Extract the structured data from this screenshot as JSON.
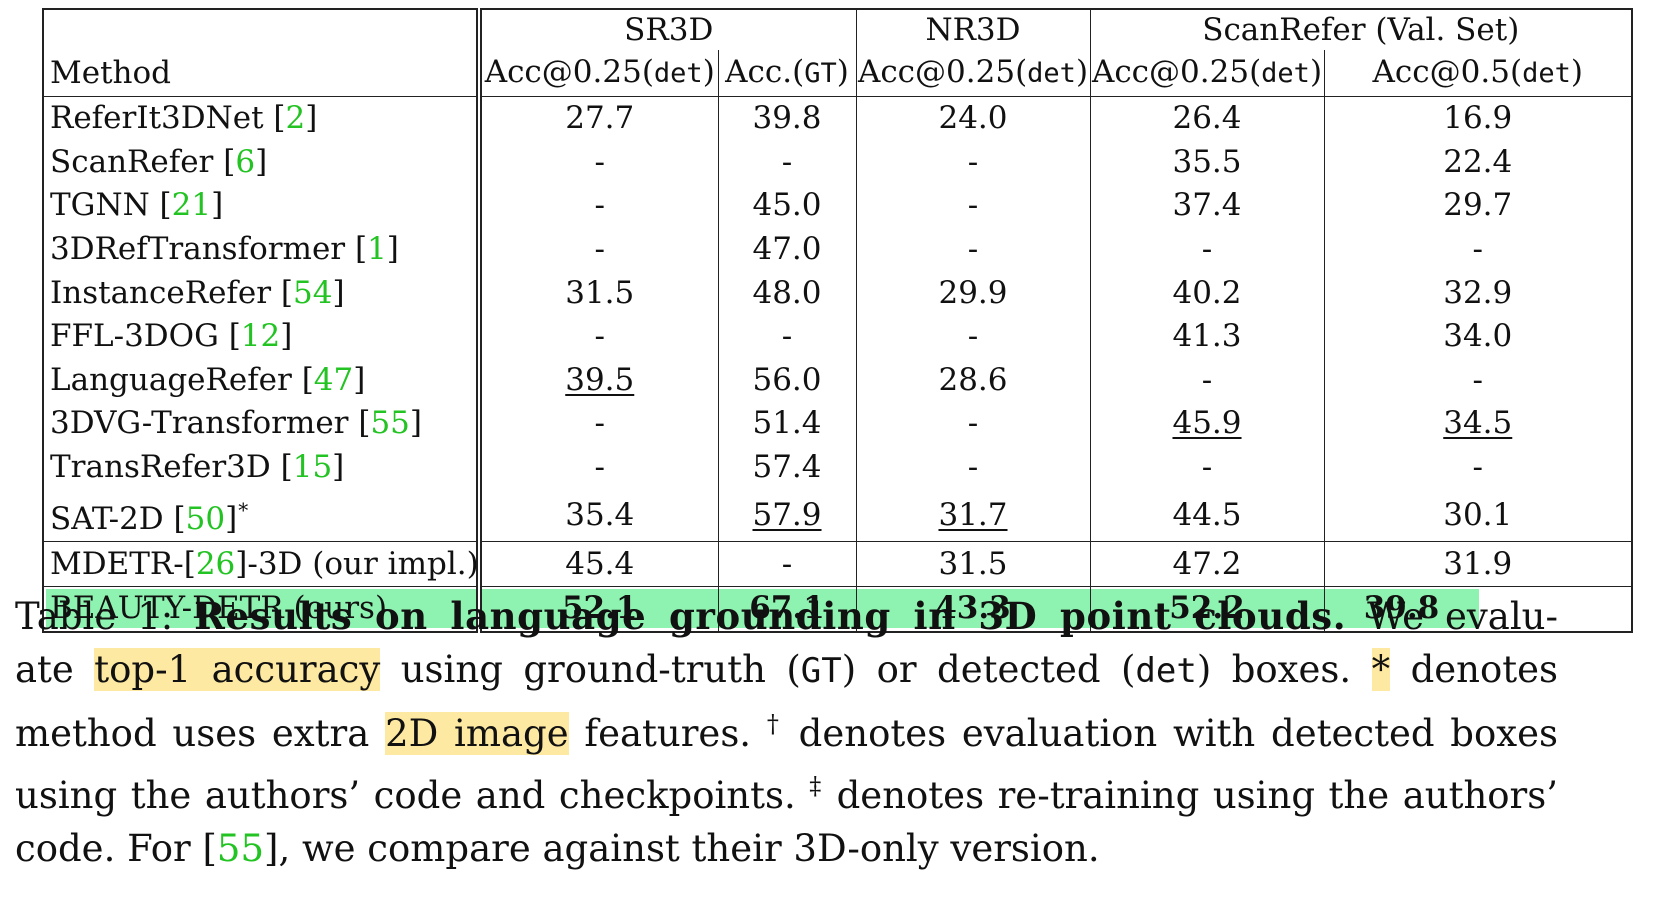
{
  "table": {
    "group_headers": {
      "sr3d": "SR3D",
      "nr3d": "NR3D",
      "scanrefer": "ScanRefer (Val. Set)"
    },
    "col_method": "Method",
    "cols": [
      {
        "pre": "Acc@0.25(",
        "mono": "det",
        "post": ")"
      },
      {
        "pre": "Acc.(",
        "mono": "GT",
        "post": ")"
      },
      {
        "pre": "Acc@0.25(",
        "mono": "det",
        "post": ")"
      },
      {
        "pre": "Acc@0.25(",
        "mono": "det",
        "post": ")"
      },
      {
        "pre": "Acc@0.5(",
        "mono": "det",
        "post": ")"
      }
    ],
    "rows": [
      {
        "name": "ReferIt3DNet",
        "cite": "2",
        "star": "",
        "c": [
          [
            "27.7",
            "†"
          ],
          [
            "39.8",
            ""
          ],
          [
            "24.0",
            "†"
          ],
          [
            "26.4",
            ""
          ],
          [
            "16.9",
            ""
          ]
        ]
      },
      {
        "name": "ScanRefer",
        "cite": "6",
        "star": "",
        "c": [
          [
            "-",
            ""
          ],
          [
            "-",
            ""
          ],
          [
            "-",
            ""
          ],
          [
            "35.5",
            ""
          ],
          [
            "22.4",
            ""
          ]
        ]
      },
      {
        "name": "TGNN",
        "cite": "21",
        "star": "",
        "c": [
          [
            "-",
            ""
          ],
          [
            "45.0",
            ""
          ],
          [
            "-",
            ""
          ],
          [
            "37.4",
            ""
          ],
          [
            "29.7",
            ""
          ]
        ]
      },
      {
        "name": "3DRefTransformer",
        "cite": "1",
        "star": "",
        "c": [
          [
            "-",
            ""
          ],
          [
            "47.0",
            ""
          ],
          [
            "-",
            ""
          ],
          [
            "-",
            ""
          ],
          [
            "-",
            ""
          ]
        ]
      },
      {
        "name": "InstanceRefer",
        "cite": "54",
        "star": "",
        "c": [
          [
            "31.5",
            "‡"
          ],
          [
            "48.0",
            ""
          ],
          [
            "29.9",
            "‡"
          ],
          [
            "40.2",
            ""
          ],
          [
            "32.9",
            ""
          ]
        ]
      },
      {
        "name": "FFL-3DOG",
        "cite": "12",
        "star": "",
        "c": [
          [
            "-",
            ""
          ],
          [
            "-",
            ""
          ],
          [
            "-",
            ""
          ],
          [
            "41.3",
            ""
          ],
          [
            "34.0",
            ""
          ]
        ]
      },
      {
        "name": "LanguageRefer",
        "cite": "47",
        "star": "",
        "c": [
          [
            "39.5",
            "†"
          ],
          [
            "56.0",
            ""
          ],
          [
            "28.6",
            "†"
          ],
          [
            "-",
            ""
          ],
          [
            "-",
            ""
          ]
        ]
      },
      {
        "name": "3DVG-Transformer",
        "cite": "55",
        "star": "",
        "c": [
          [
            "-",
            ""
          ],
          [
            "51.4",
            ""
          ],
          [
            "-",
            ""
          ],
          [
            "45.9",
            ""
          ],
          [
            "34.5",
            ""
          ]
        ]
      },
      {
        "name": "TransRefer3D",
        "cite": "15",
        "star": "",
        "c": [
          [
            "-",
            ""
          ],
          [
            "57.4",
            ""
          ],
          [
            "-",
            ""
          ],
          [
            "-",
            ""
          ],
          [
            "-",
            ""
          ]
        ]
      },
      {
        "name": "SAT-2D",
        "cite": "50",
        "star": "*",
        "c": [
          [
            "35.4",
            "†"
          ],
          [
            "57.9",
            ""
          ],
          [
            "31.7",
            "†"
          ],
          [
            "44.5",
            ""
          ],
          [
            "30.1",
            ""
          ]
        ]
      }
    ],
    "mdetr": {
      "pre": "MDETR-[",
      "cite": "26",
      "post": "]-3D (our impl.)",
      "c": [
        "45.4",
        "-",
        "31.5",
        "47.2",
        "31.9"
      ]
    },
    "ours": {
      "name": "BEAUTY-DETR (ours)",
      "c": [
        "52.1",
        "67.1",
        "43.3",
        "52.2",
        "39.8"
      ]
    }
  },
  "caption": {
    "label": "Table 1:",
    "title": "Results on language grounding in 3D point clouds.",
    "l1_tail": "We evalu-",
    "l2_a": "ate",
    "l2_hl": "top-1 accuracy",
    "l2_b": "using ground-truth (",
    "l2_mono1": "GT",
    "l2_c": ") or detected (",
    "l2_mono2": "det",
    "l2_d": ") boxes.",
    "l2_star": "*",
    "l2_e": "denotes",
    "l3_a": "method uses extra",
    "l3_hl": "2D image",
    "l3_b": "features.",
    "l3_dagger": "†",
    "l3_c": "denotes evaluation with detected boxes",
    "l4_a": "using the authors’ code and checkpoints.",
    "l4_ddagger": "‡",
    "l4_b": "denotes re-training using the authors’",
    "l5_a": "code. For [",
    "l5_cite": "55",
    "l5_b": "], we compare against their 3D-only version."
  },
  "colors": {
    "citation": "#22c322",
    "ours_highlight": "#8ef2b0",
    "caption_highlight": "#fde9a2"
  }
}
